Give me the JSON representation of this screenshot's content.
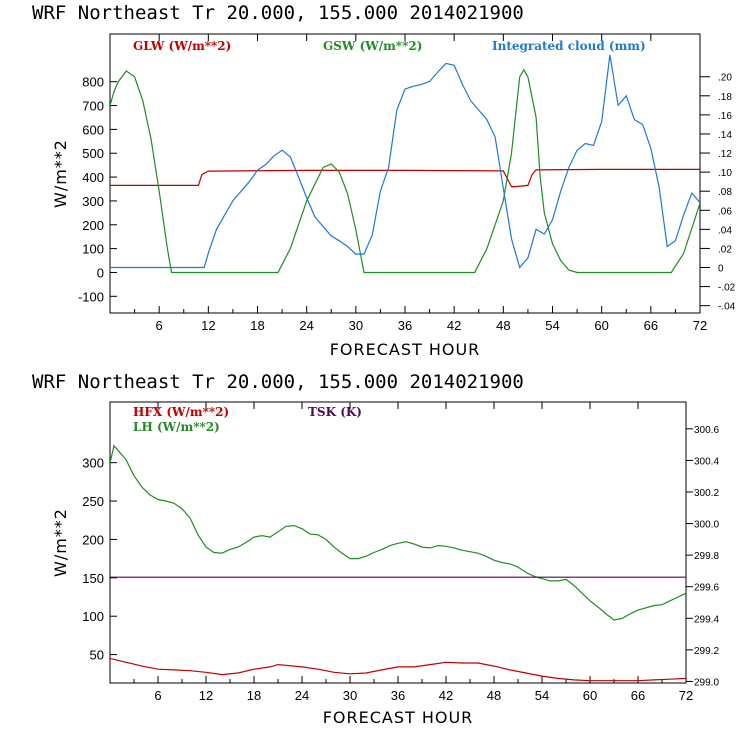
{
  "chart_data": [
    {
      "type": "line",
      "header": "WRF  Northeast Tr  20.000, 155.000  2014021900",
      "xlabel": "FORECAST HOUR",
      "ylabel": "W/m**2",
      "xlim": [
        0,
        72
      ],
      "ylim": [
        -170,
        1000
      ],
      "yticks": [
        -100,
        0,
        100,
        200,
        300,
        400,
        500,
        600,
        700,
        800
      ],
      "y2lim": [
        -0.0477,
        0.2448
      ],
      "y2ticks": [
        ".20",
        ".18",
        ".16",
        ".14",
        ".12",
        ".10",
        ".08",
        ".06",
        ".04",
        ".02",
        "0",
        "-.02",
        "-.04"
      ],
      "xticks": [
        6,
        12,
        18,
        24,
        30,
        36,
        42,
        48,
        54,
        60,
        66,
        72
      ],
      "series": [
        {
          "name": "GLW (W/m**2)",
          "axis": "left",
          "color": "#c00000",
          "x": [
            0,
            10.8,
            11.2,
            12,
            24,
            36,
            48,
            49,
            49.5,
            51,
            51.5,
            52,
            60,
            72
          ],
          "y": [
            365,
            365,
            410,
            425,
            428,
            428,
            426,
            360,
            360,
            365,
            410,
            430,
            432,
            432
          ]
        },
        {
          "name": "GSW (W/m**2)",
          "axis": "left",
          "color": "#228b22",
          "x": [
            0,
            0.5,
            1,
            2,
            3,
            4,
            5,
            6,
            7,
            7.5,
            20.5,
            22,
            24,
            26,
            27,
            28,
            29,
            30,
            31,
            44.5,
            46,
            48,
            49,
            50,
            50.5,
            51,
            52,
            52.5,
            53,
            54,
            55,
            56,
            57,
            68.5,
            70,
            72
          ],
          "y": [
            700,
            760,
            800,
            845,
            820,
            720,
            560,
            340,
            100,
            0,
            0,
            100,
            300,
            440,
            455,
            420,
            330,
            180,
            0,
            0,
            100,
            300,
            500,
            820,
            850,
            820,
            650,
            400,
            250,
            120,
            50,
            10,
            0,
            0,
            80,
            290
          ]
        },
        {
          "name": "Integrated cloud (mm)",
          "axis": "right",
          "color": "#1e78d8",
          "x": [
            0,
            11.5,
            12,
            13,
            15,
            17,
            18,
            19,
            20,
            21,
            22,
            23,
            24,
            25,
            26,
            27,
            28,
            29,
            30,
            31,
            32,
            33,
            34,
            35,
            36,
            37,
            38,
            39,
            40,
            41,
            42,
            43,
            44,
            45,
            46,
            47,
            48,
            49,
            50,
            51,
            52,
            53,
            54,
            55,
            56,
            57,
            58,
            59,
            60,
            61,
            62,
            63,
            64,
            65,
            66,
            67,
            68,
            69,
            70,
            71,
            72
          ],
          "y": [
            0,
            0,
            0.015,
            0.04,
            0.07,
            0.09,
            0.102,
            0.108,
            0.117,
            0.123,
            0.116,
            0.095,
            0.073,
            0.053,
            0.043,
            0.033,
            0.028,
            0.022,
            0.014,
            0.014,
            0.034,
            0.08,
            0.105,
            0.165,
            0.187,
            0.19,
            0.192,
            0.195,
            0.205,
            0.214,
            0.212,
            0.192,
            0.175,
            0.165,
            0.155,
            0.137,
            0.083,
            0.03,
            0.0,
            0.01,
            0.04,
            0.035,
            0.05,
            0.08,
            0.105,
            0.123,
            0.13,
            0.128,
            0.153,
            0.223,
            0.17,
            0.18,
            0.155,
            0.15,
            0.125,
            0.085,
            0.022,
            0.028,
            0.055,
            0.078,
            0.068
          ]
        }
      ]
    },
    {
      "type": "line",
      "header": "WRF  Northeast Tr  20.000, 155.000  2014021900",
      "xlabel": "FORECAST HOUR",
      "ylabel": "W/m**2",
      "xlim": [
        0,
        72
      ],
      "ylim": [
        13,
        379
      ],
      "yticks": [
        50,
        100,
        150,
        200,
        250,
        300
      ],
      "y2lim": [
        298.99,
        300.77
      ],
      "y2ticks": [
        "300.6",
        "300.4",
        "300.2",
        "300.0",
        "299.8",
        "299.6",
        "299.4",
        "299.2",
        "299.0"
      ],
      "xticks": [
        6,
        12,
        18,
        24,
        30,
        36,
        42,
        48,
        54,
        60,
        66,
        72
      ],
      "series": [
        {
          "name": "HFX (W/m**2)",
          "axis": "left",
          "color": "#c00000",
          "x": [
            0,
            2,
            4,
            6,
            8,
            10,
            12,
            14,
            16,
            18,
            20,
            21,
            22,
            24,
            26,
            28,
            30,
            32,
            34,
            36,
            38,
            40,
            42,
            44,
            46,
            48,
            50,
            52,
            54,
            56,
            58,
            60,
            62,
            64,
            66,
            68,
            70,
            72
          ],
          "y": [
            45,
            40,
            35,
            31,
            30,
            29,
            27,
            24,
            26,
            31,
            34,
            37,
            36,
            34,
            31,
            27,
            25,
            26,
            30,
            34,
            34,
            37,
            40,
            39,
            39,
            35,
            30,
            26,
            22,
            19,
            17,
            16,
            16,
            16,
            16,
            17,
            18,
            19
          ]
        },
        {
          "name": "LH  (W/m**2)",
          "axis": "left",
          "color": "#228b22",
          "x": [
            0,
            0.5,
            2,
            3,
            4,
            5,
            6,
            7,
            8,
            9,
            10,
            11,
            12,
            13,
            14,
            15,
            16,
            17,
            18,
            19,
            20,
            21,
            22,
            23,
            24,
            25,
            26,
            27,
            28,
            29,
            30,
            31,
            32,
            33,
            34,
            35,
            36,
            37,
            38,
            39,
            40,
            41,
            42,
            43,
            44,
            45,
            46,
            47,
            48,
            49,
            50,
            51,
            52,
            53,
            54,
            55,
            56,
            57,
            58,
            59,
            60,
            61,
            62,
            63,
            64,
            65,
            66,
            67,
            68,
            69,
            70,
            71,
            72
          ],
          "y": [
            300,
            322,
            304,
            283,
            268,
            258,
            252,
            250,
            247,
            240,
            228,
            206,
            190,
            183,
            182,
            187,
            190,
            196,
            203,
            205,
            203,
            210,
            217,
            218,
            214,
            207,
            206,
            200,
            190,
            182,
            175,
            175,
            178,
            183,
            187,
            192,
            195,
            197,
            194,
            190,
            189,
            192,
            191,
            189,
            186,
            184,
            182,
            178,
            173,
            170,
            168,
            164,
            157,
            152,
            149,
            146,
            146,
            148,
            140,
            130,
            120,
            112,
            103,
            95,
            97,
            103,
            108,
            111,
            114,
            115,
            120,
            125,
            130
          ]
        },
        {
          "name": "TSK (K)",
          "axis": "right",
          "color": "#4b0a55",
          "x": [
            0,
            72
          ],
          "y": [
            299.66,
            299.66
          ]
        }
      ]
    }
  ]
}
